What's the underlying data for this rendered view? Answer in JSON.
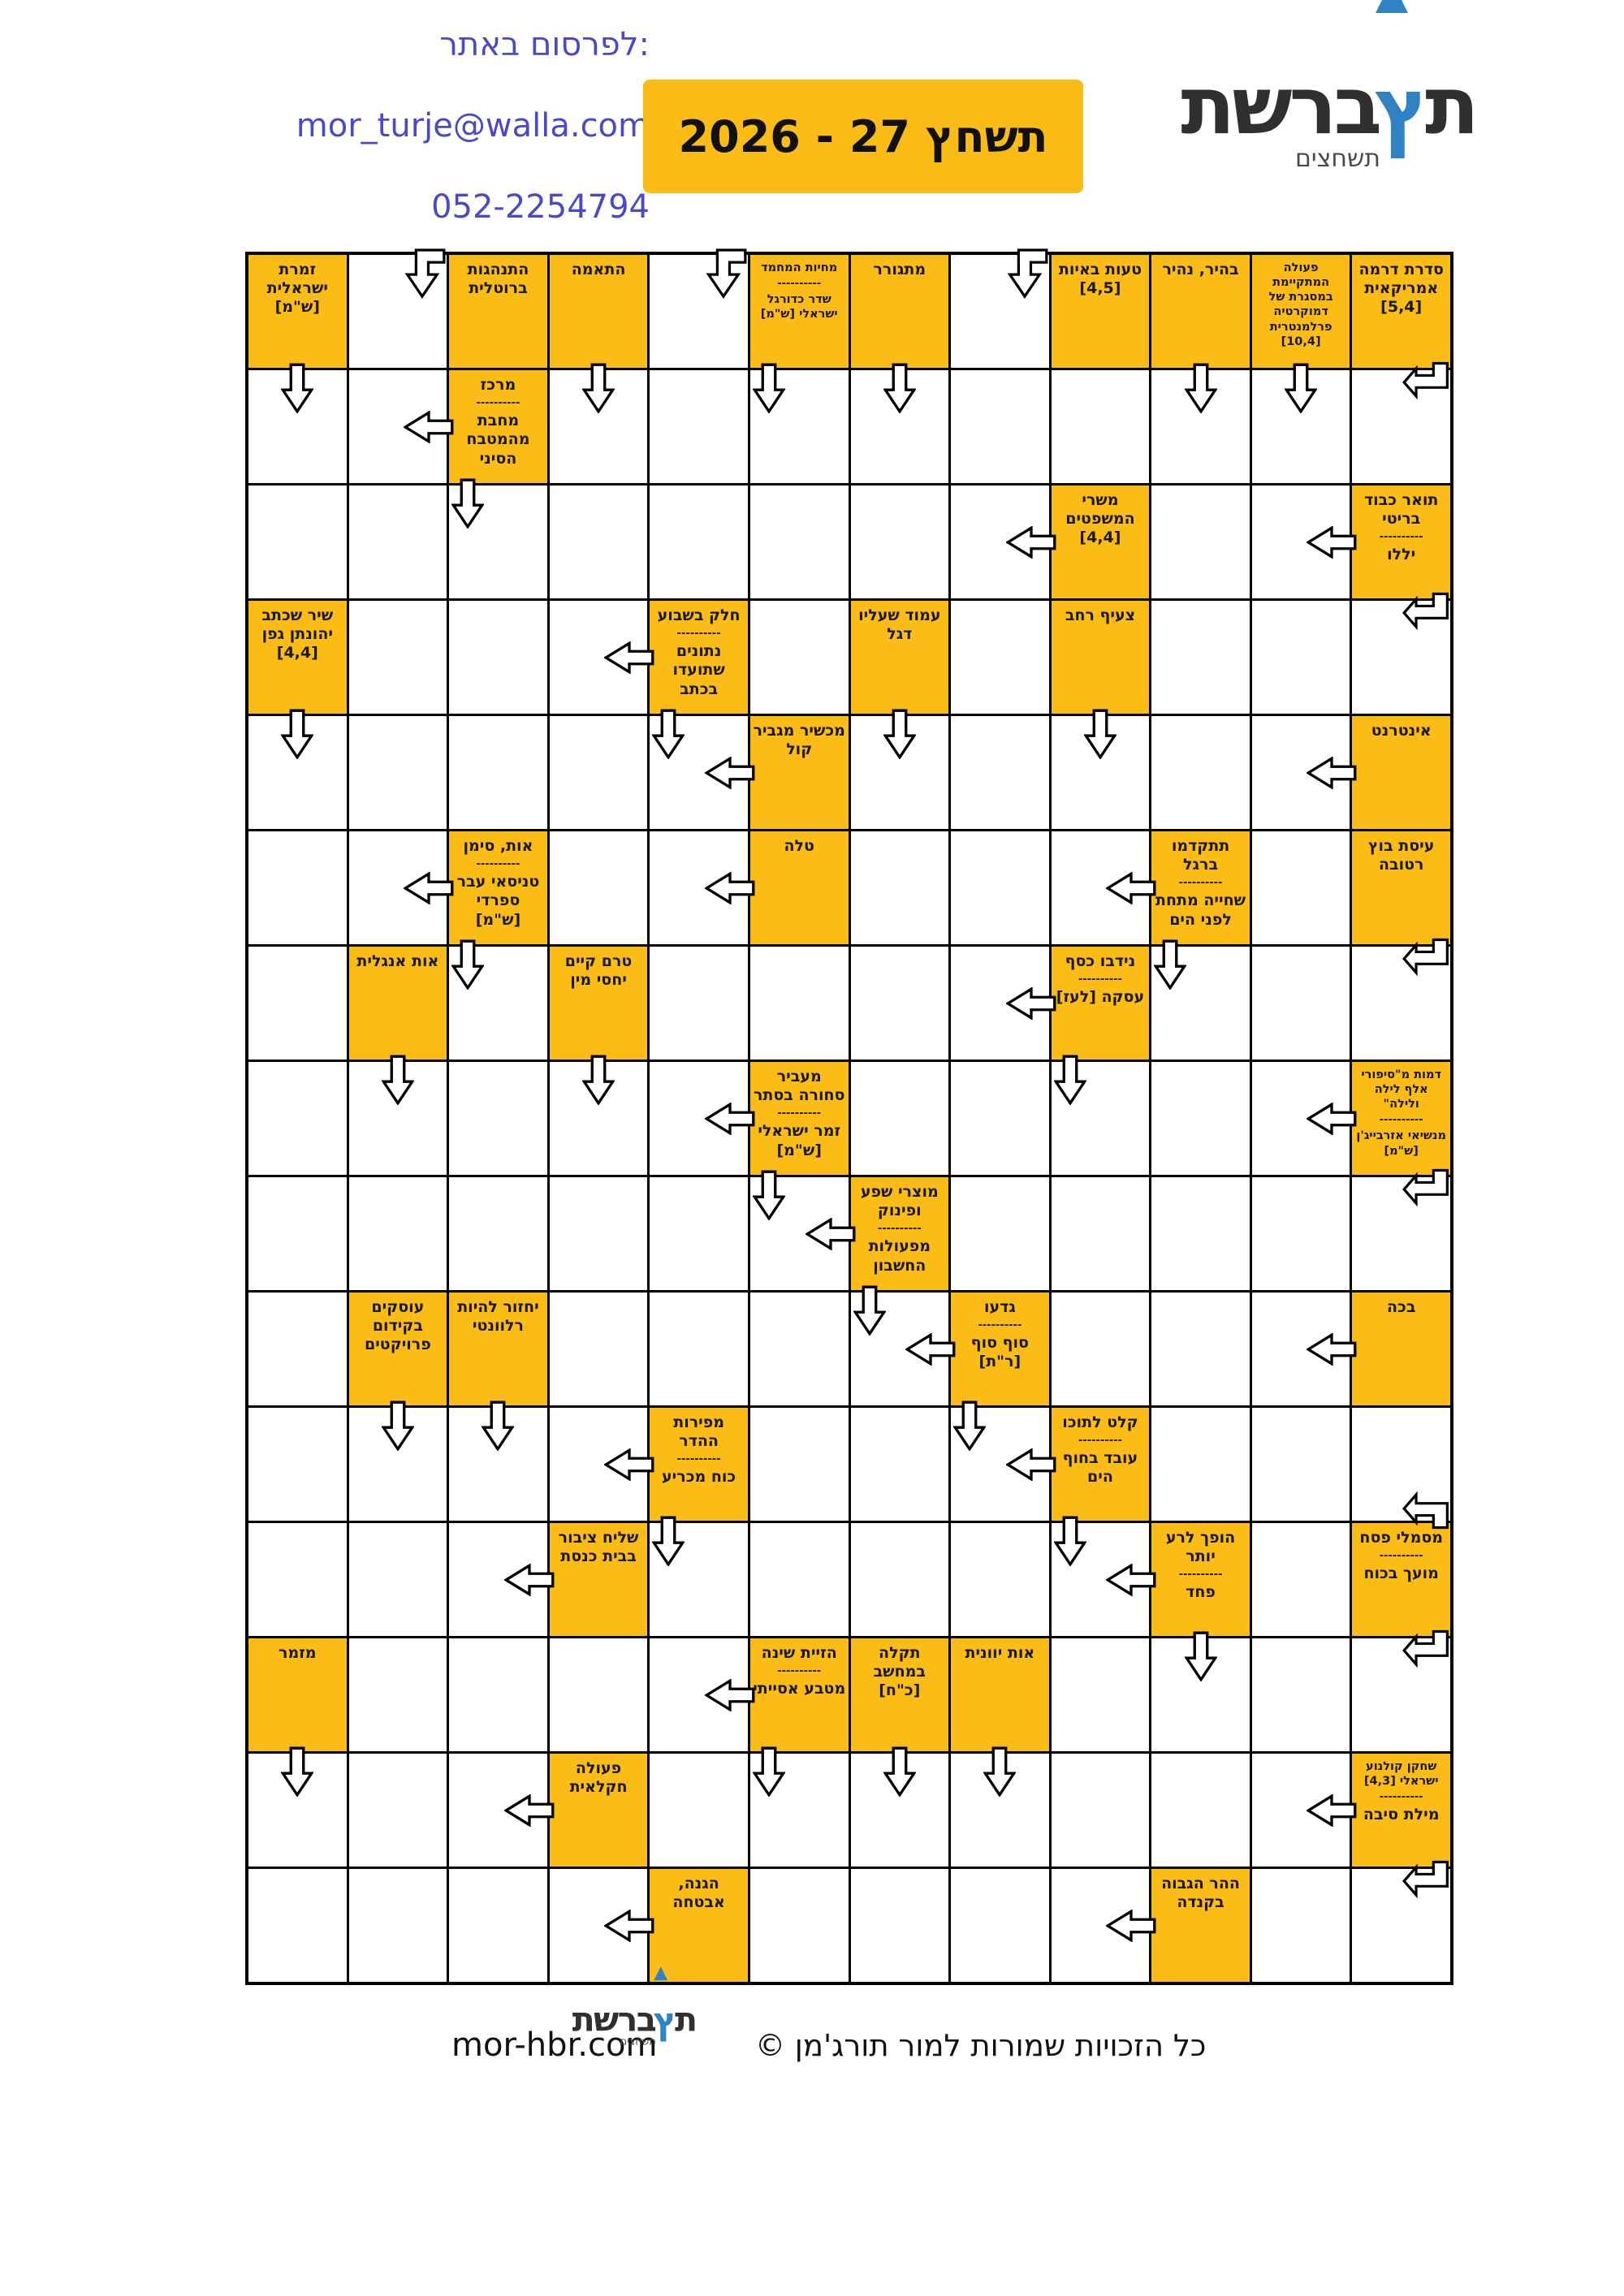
{
  "contact": {
    "line1": "לפרסום באתר:",
    "email": "mor_turje@walla.com",
    "phone": "052-2254794"
  },
  "title": "תשחץ 27 - 2026",
  "logo": {
    "glyph_right": "ת",
    "glyph_blue": "ץ",
    "brand": "ברשת",
    "sub": "תשחצים"
  },
  "footer": {
    "site": "mor-hbr.com",
    "copyright": "כל הזכויות שמורות למור תורג'מן ©"
  },
  "colors": {
    "clue_bg": "#fbbc15",
    "header_blue": "#4a4ac6",
    "logo_blue": "#2f82c3",
    "line": "#000000"
  },
  "grid": {
    "rows": 15,
    "cols": 12,
    "clues": [
      {
        "r": 1,
        "c": 1,
        "parts": [
          {
            "t": "זמרת ישראלית [ש\"מ]"
          }
        ]
      },
      {
        "r": 1,
        "c": 3,
        "parts": [
          {
            "t": "התנהגות ברוטלית"
          }
        ]
      },
      {
        "r": 1,
        "c": 4,
        "parts": [
          {
            "t": "התאמה"
          }
        ]
      },
      {
        "r": 1,
        "c": 6,
        "parts": [
          {
            "t": "מחיות המחמד",
            "small": true
          },
          {
            "t": "שדר כדורגל ישראלי [ש\"מ]",
            "small": true
          }
        ]
      },
      {
        "r": 1,
        "c": 7,
        "parts": [
          {
            "t": "מתגורר"
          }
        ]
      },
      {
        "r": 1,
        "c": 9,
        "parts": [
          {
            "t": "טעות באיות [4,5]"
          }
        ]
      },
      {
        "r": 1,
        "c": 10,
        "parts": [
          {
            "t": "בהיר, נהיר"
          }
        ]
      },
      {
        "r": 1,
        "c": 11,
        "parts": [
          {
            "t": "פעולה המתקיימת במסגרת של דמוקרטיה פרלמנטרית [10,4]",
            "small": true
          }
        ]
      },
      {
        "r": 1,
        "c": 12,
        "parts": [
          {
            "t": "סדרת דרמה אמריקאית [5,4]"
          }
        ]
      },
      {
        "r": 2,
        "c": 3,
        "parts": [
          {
            "t": "מרכז"
          },
          {
            "t": "מחבת מהמטבח הסיני"
          }
        ]
      },
      {
        "r": 3,
        "c": 9,
        "parts": [
          {
            "t": "משרי המשפטים [4,4]"
          }
        ]
      },
      {
        "r": 3,
        "c": 12,
        "parts": [
          {
            "t": "תואר כבוד בריטי"
          },
          {
            "t": "יללו"
          }
        ]
      },
      {
        "r": 4,
        "c": 1,
        "parts": [
          {
            "t": "שיר שכתב יהונתן גפן [4,4]"
          }
        ]
      },
      {
        "r": 4,
        "c": 5,
        "parts": [
          {
            "t": "חלק בשבוע"
          },
          {
            "t": "נתונים שתועדו בכתב"
          }
        ]
      },
      {
        "r": 4,
        "c": 7,
        "parts": [
          {
            "t": "עמוד שעליו דגל"
          }
        ]
      },
      {
        "r": 4,
        "c": 9,
        "parts": [
          {
            "t": "צעיף רחב"
          }
        ]
      },
      {
        "r": 5,
        "c": 6,
        "parts": [
          {
            "t": "מכשיר מגביר קול"
          }
        ]
      },
      {
        "r": 5,
        "c": 12,
        "parts": [
          {
            "t": "אינטרנט"
          }
        ]
      },
      {
        "r": 6,
        "c": 3,
        "parts": [
          {
            "t": "אות, סימן"
          },
          {
            "t": "טניסאי עבר ספרדי [ש\"מ]"
          }
        ]
      },
      {
        "r": 6,
        "c": 6,
        "parts": [
          {
            "t": "טלה"
          }
        ]
      },
      {
        "r": 6,
        "c": 10,
        "parts": [
          {
            "t": "תתקדמו ברגל"
          },
          {
            "t": "שחייה מתחת לפני הים"
          }
        ]
      },
      {
        "r": 6,
        "c": 12,
        "parts": [
          {
            "t": "עיסת בוץ רטובה"
          }
        ]
      },
      {
        "r": 7,
        "c": 2,
        "parts": [
          {
            "t": "אות אנגלית"
          }
        ]
      },
      {
        "r": 7,
        "c": 4,
        "parts": [
          {
            "t": "טרם קיים יחסי מין"
          }
        ]
      },
      {
        "r": 7,
        "c": 9,
        "parts": [
          {
            "t": "נידבו כסף"
          },
          {
            "t": "עסקה [לעז]"
          }
        ]
      },
      {
        "r": 8,
        "c": 6,
        "parts": [
          {
            "t": "מעביר סחורה בסתר"
          },
          {
            "t": "זמר ישראלי [ש\"מ]"
          }
        ]
      },
      {
        "r": 8,
        "c": 12,
        "parts": [
          {
            "t": "דמות מ\"סיפורי אלף לילה ולילה\"",
            "small": true
          },
          {
            "t": "מנשיאי אזרבייג'ן [ש\"מ]",
            "small": true
          }
        ]
      },
      {
        "r": 9,
        "c": 7,
        "parts": [
          {
            "t": "מוצרי שפע ופינוק"
          },
          {
            "t": "מפעולות החשבון"
          }
        ]
      },
      {
        "r": 10,
        "c": 2,
        "parts": [
          {
            "t": "עוסקים בקידום פרויקטים"
          }
        ]
      },
      {
        "r": 10,
        "c": 3,
        "parts": [
          {
            "t": "יחזור להיות רלוונטי"
          }
        ]
      },
      {
        "r": 10,
        "c": 8,
        "parts": [
          {
            "t": "גדעו"
          },
          {
            "t": "סוף סוף [ר\"ת]"
          }
        ]
      },
      {
        "r": 10,
        "c": 12,
        "parts": [
          {
            "t": "בכה"
          }
        ]
      },
      {
        "r": 11,
        "c": 5,
        "parts": [
          {
            "t": "מפירות ההדר"
          },
          {
            "t": "כוח מכריע"
          }
        ]
      },
      {
        "r": 11,
        "c": 9,
        "parts": [
          {
            "t": "קלט לתוכו"
          },
          {
            "t": "עובד בחוף הים"
          }
        ]
      },
      {
        "r": 12,
        "c": 4,
        "parts": [
          {
            "t": "שליח ציבור בבית כנסת"
          }
        ]
      },
      {
        "r": 12,
        "c": 10,
        "parts": [
          {
            "t": "הופך לרע יותר"
          },
          {
            "t": "פחד"
          }
        ]
      },
      {
        "r": 12,
        "c": 12,
        "parts": [
          {
            "t": "מסמלי פסח"
          },
          {
            "t": "מועך בכוח"
          }
        ]
      },
      {
        "r": 13,
        "c": 1,
        "parts": [
          {
            "t": "מזמר"
          }
        ]
      },
      {
        "r": 13,
        "c": 6,
        "parts": [
          {
            "t": "הזיית שינה"
          },
          {
            "t": "מטבע אסייתי"
          }
        ]
      },
      {
        "r": 13,
        "c": 7,
        "parts": [
          {
            "t": "תקלה במחשב [כ\"ח]"
          }
        ]
      },
      {
        "r": 13,
        "c": 8,
        "parts": [
          {
            "t": "אות יוונית"
          }
        ]
      },
      {
        "r": 14,
        "c": 4,
        "parts": [
          {
            "t": "פעולה חקלאית"
          }
        ]
      },
      {
        "r": 14,
        "c": 12,
        "parts": [
          {
            "t": "שחקן קולנוע ישראלי [4,3]",
            "small": true
          },
          {
            "t": "מילת סיבה"
          }
        ]
      },
      {
        "r": 15,
        "c": 5,
        "parts": [
          {
            "t": "הגנה, אבטחה"
          }
        ]
      },
      {
        "r": 15,
        "c": 10,
        "parts": [
          {
            "t": "ההר הגבוה בקנדה"
          }
        ]
      }
    ],
    "arrows": [
      {
        "r": 1,
        "c": 2,
        "k": "bd"
      },
      {
        "r": 1,
        "c": 5,
        "k": "bd"
      },
      {
        "r": 1,
        "c": 8,
        "k": "bd"
      },
      {
        "r": 2,
        "c": 1,
        "k": "d"
      },
      {
        "r": 2,
        "c": 2,
        "k": "l"
      },
      {
        "r": 2,
        "c": 4,
        "k": "d"
      },
      {
        "r": 2,
        "c": 6,
        "k": "d2"
      },
      {
        "r": 2,
        "c": 7,
        "k": "d"
      },
      {
        "r": 2,
        "c": 10,
        "k": "d"
      },
      {
        "r": 2,
        "c": 11,
        "k": "d"
      },
      {
        "r": 2,
        "c": 12,
        "k": "bl"
      },
      {
        "r": 3,
        "c": 3,
        "k": "d2"
      },
      {
        "r": 3,
        "c": 8,
        "k": "l"
      },
      {
        "r": 3,
        "c": 11,
        "k": "l"
      },
      {
        "r": 4,
        "c": 4,
        "k": "l"
      },
      {
        "r": 4,
        "c": 12,
        "k": "bl"
      },
      {
        "r": 5,
        "c": 1,
        "k": "d"
      },
      {
        "r": 5,
        "c": 5,
        "k": "d2"
      },
      {
        "r": 5,
        "c": 5,
        "k": "l"
      },
      {
        "r": 5,
        "c": 7,
        "k": "d"
      },
      {
        "r": 5,
        "c": 9,
        "k": "d"
      },
      {
        "r": 5,
        "c": 11,
        "k": "l"
      },
      {
        "r": 6,
        "c": 2,
        "k": "l"
      },
      {
        "r": 6,
        "c": 5,
        "k": "l"
      },
      {
        "r": 6,
        "c": 9,
        "k": "l"
      },
      {
        "r": 7,
        "c": 3,
        "k": "d2"
      },
      {
        "r": 7,
        "c": 8,
        "k": "l"
      },
      {
        "r": 7,
        "c": 10,
        "k": "d2"
      },
      {
        "r": 7,
        "c": 12,
        "k": "bl"
      },
      {
        "r": 8,
        "c": 2,
        "k": "d"
      },
      {
        "r": 8,
        "c": 4,
        "k": "d"
      },
      {
        "r": 8,
        "c": 5,
        "k": "l"
      },
      {
        "r": 8,
        "c": 9,
        "k": "d2"
      },
      {
        "r": 8,
        "c": 11,
        "k": "l"
      },
      {
        "r": 9,
        "c": 6,
        "k": "d2"
      },
      {
        "r": 9,
        "c": 6,
        "k": "l"
      },
      {
        "r": 9,
        "c": 12,
        "k": "bl"
      },
      {
        "r": 10,
        "c": 7,
        "k": "d2"
      },
      {
        "r": 10,
        "c": 7,
        "k": "l"
      },
      {
        "r": 10,
        "c": 11,
        "k": "l"
      },
      {
        "r": 11,
        "c": 2,
        "k": "d"
      },
      {
        "r": 11,
        "c": 3,
        "k": "d"
      },
      {
        "r": 11,
        "c": 4,
        "k": "l"
      },
      {
        "r": 11,
        "c": 8,
        "k": "d2"
      },
      {
        "r": 11,
        "c": 8,
        "k": "l"
      },
      {
        "r": 11,
        "c": 12,
        "k": "ul"
      },
      {
        "r": 12,
        "c": 3,
        "k": "l"
      },
      {
        "r": 12,
        "c": 5,
        "k": "d2"
      },
      {
        "r": 12,
        "c": 9,
        "k": "d2"
      },
      {
        "r": 12,
        "c": 9,
        "k": "l"
      },
      {
        "r": 13,
        "c": 5,
        "k": "l"
      },
      {
        "r": 13,
        "c": 10,
        "k": "d"
      },
      {
        "r": 13,
        "c": 12,
        "k": "bl"
      },
      {
        "r": 14,
        "c": 1,
        "k": "d"
      },
      {
        "r": 14,
        "c": 3,
        "k": "l"
      },
      {
        "r": 14,
        "c": 6,
        "k": "d2"
      },
      {
        "r": 14,
        "c": 7,
        "k": "d"
      },
      {
        "r": 14,
        "c": 8,
        "k": "d"
      },
      {
        "r": 14,
        "c": 11,
        "k": "l"
      },
      {
        "r": 15,
        "c": 4,
        "k": "l"
      },
      {
        "r": 15,
        "c": 9,
        "k": "l"
      },
      {
        "r": 15,
        "c": 12,
        "k": "bl"
      }
    ]
  }
}
